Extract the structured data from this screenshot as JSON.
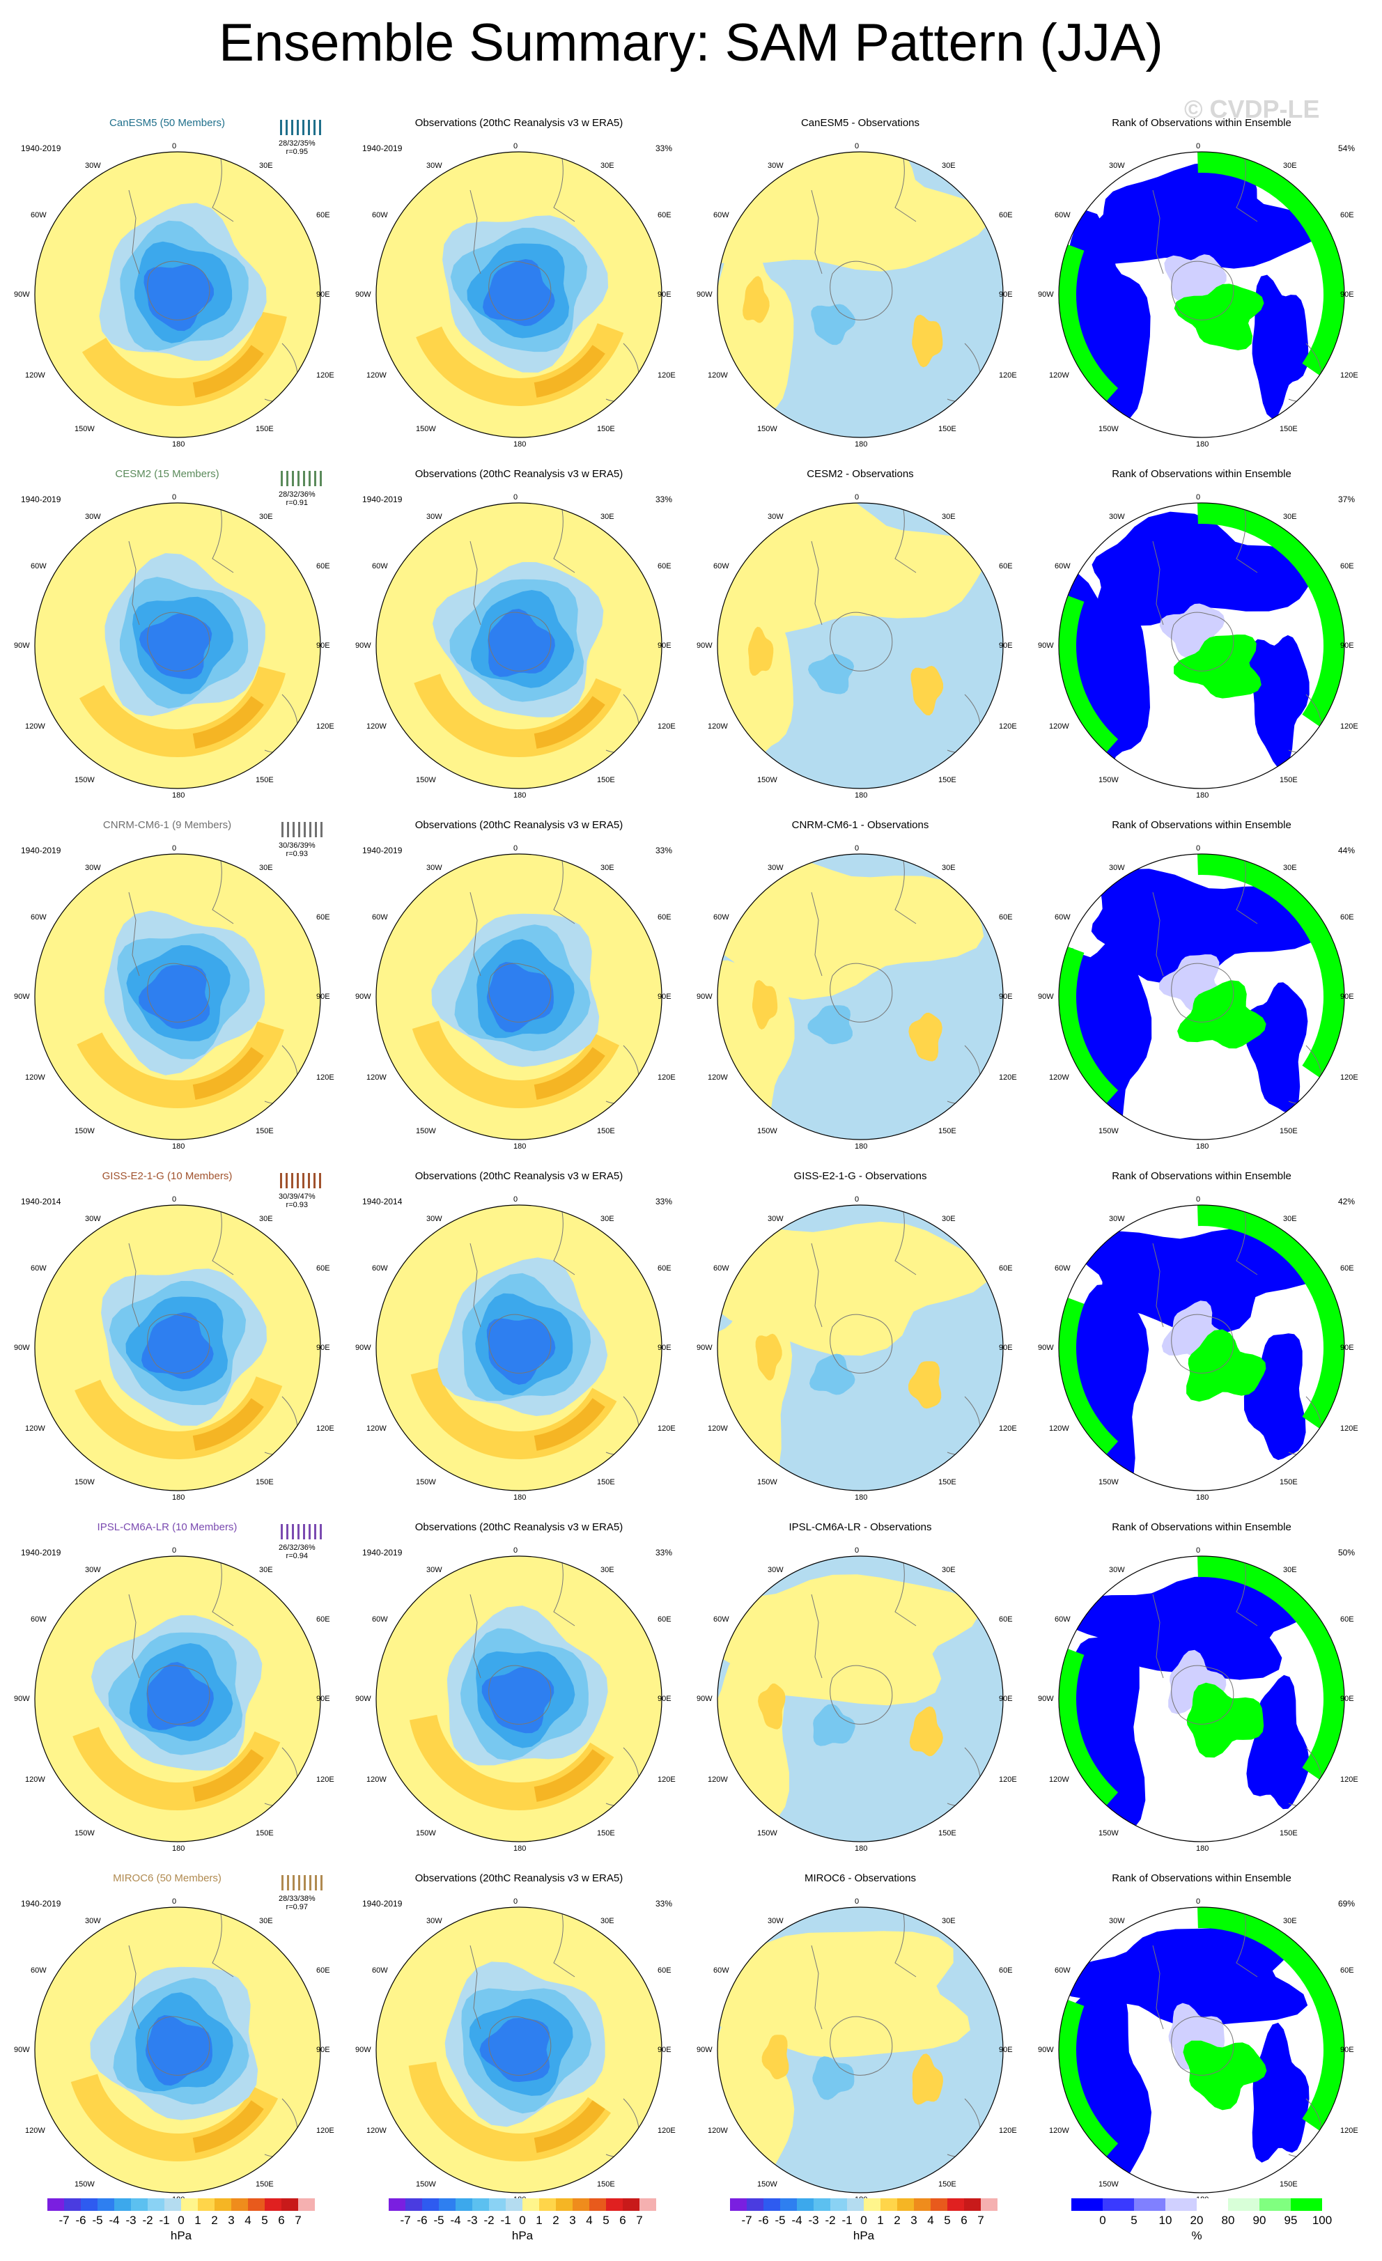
{
  "title": "Ensemble Summary: SAM Pattern (JJA)",
  "watermark": "© CVDP-LE",
  "colors": {
    "pos1": "#fff58c",
    "pos2": "#ffd54a",
    "pos3": "#f5b524",
    "pos4": "#ef8c1c",
    "neg1": "#b4dcf0",
    "neg2": "#78c8f0",
    "neg3": "#3ca8ec",
    "neg4": "#2e7ff0",
    "neg5": "#4a5cdc",
    "rank_high": "#00ff00",
    "rank_low": "#0000ff",
    "rank_lowish": "#d0d0ff",
    "rank_highish": "#d8ffd8"
  },
  "lon_labels": {
    "top": "0",
    "bottom": "180",
    "upper_left": "30W",
    "upper_right": "30E",
    "left_upper": "60W",
    "right_upper": "60E",
    "left": "90W",
    "right": "90E",
    "left_lower": "120W",
    "right_lower": "120E",
    "lower_left": "150W",
    "lower_right": "150E"
  },
  "obs_title": "Observations (20thC Reanalysis v3 w ERA5)",
  "rank_title": "Rank of Observations within Ensemble",
  "rows": [
    {
      "model": "CanESM5 (50 Members)",
      "model_color": "#1f6f8b",
      "period": "1940-2019",
      "stats": "28/32/35%",
      "r": "r=0.95",
      "obs_period": "1940-2019",
      "obs_pct": "33%",
      "diff_title": "CanESM5 - Observations",
      "rank_pct": "54%"
    },
    {
      "model": "CESM2 (15 Members)",
      "model_color": "#5a8a5a",
      "period": "1940-2019",
      "stats": "28/32/36%",
      "r": "r=0.91",
      "obs_period": "1940-2019",
      "obs_pct": "33%",
      "diff_title": "CESM2 - Observations",
      "rank_pct": "37%"
    },
    {
      "model": "CNRM-CM6-1 (9 Members)",
      "model_color": "#707070",
      "period": "1940-2019",
      "stats": "30/36/39%",
      "r": "r=0.93",
      "obs_period": "1940-2019",
      "obs_pct": "33%",
      "diff_title": "CNRM-CM6-1 - Observations",
      "rank_pct": "44%"
    },
    {
      "model": "GISS-E2-1-G (10 Members)",
      "model_color": "#a0522d",
      "period": "1940-2014",
      "stats": "30/39/47%",
      "r": "r=0.93",
      "obs_period": "1940-2014",
      "obs_pct": "33%",
      "diff_title": "GISS-E2-1-G - Observations",
      "rank_pct": "42%"
    },
    {
      "model": "IPSL-CM6A-LR (10 Members)",
      "model_color": "#7a4ab0",
      "period": "1940-2019",
      "stats": "26/32/36%",
      "r": "r=0.94",
      "obs_period": "1940-2019",
      "obs_pct": "33%",
      "diff_title": "IPSL-CM6A-LR - Observations",
      "rank_pct": "50%"
    },
    {
      "model": "MIROC6 (50 Members)",
      "model_color": "#b08a50",
      "period": "1940-2019",
      "stats": "28/33/38%",
      "r": "r=0.97",
      "obs_period": "1940-2019",
      "obs_pct": "33%",
      "diff_title": "MIROC6 - Observations",
      "rank_pct": "69%"
    }
  ],
  "colorbar_hpa": {
    "labels": [
      "-7",
      "-6",
      "-5",
      "-4",
      "-3",
      "-2",
      "-1",
      "0",
      "1",
      "2",
      "3",
      "4",
      "5",
      "6",
      "7"
    ],
    "colors": [
      "#7a1fe0",
      "#4a3ce0",
      "#2e5bf0",
      "#2e7ff0",
      "#3ca8ec",
      "#5cc0f0",
      "#8ad2f4",
      "#b4dcf0",
      "#fff58c",
      "#ffd54a",
      "#f5b524",
      "#ef8c1c",
      "#e85a1c",
      "#e02020",
      "#c81a1a",
      "#f5b0b0"
    ],
    "units": "hPa"
  },
  "colorbar_rank": {
    "labels": [
      "0",
      "5",
      "10",
      "20",
      "80",
      "90",
      "95",
      "100"
    ],
    "colors": [
      "#0000ff",
      "#3a3aff",
      "#8080ff",
      "#d0d0ff",
      "#ffffff",
      "#d8ffd8",
      "#80ff80",
      "#00ff00"
    ],
    "units": "%"
  }
}
